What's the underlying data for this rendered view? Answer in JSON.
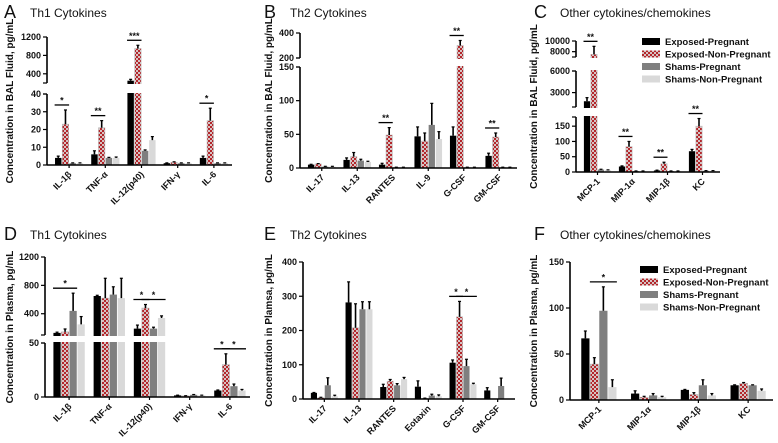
{
  "series_names": [
    "Exposed-Pregnant",
    "Exposed-Non-Pregnant",
    "Shams-Pregnant",
    "Shams-Non-Pregnant"
  ],
  "series_colors": [
    "#000000",
    "#b3262b",
    "#7f7f7f",
    "#d9d9d9"
  ],
  "chart_data": [
    {
      "panel": "A",
      "type": "bar",
      "title": "Th1 Cytokines",
      "ylabel": "Concentration in BAL Fluid, pg/mL",
      "categories": [
        "IL-1β",
        "TNF-α",
        "IL-12(p40)",
        "IFN-γ",
        "IL-6"
      ],
      "series": [
        {
          "name": "Exposed-Pregnant",
          "values": [
            4,
            6,
            250,
            1,
            4
          ],
          "errors": [
            1,
            2,
            30,
            0.2,
            1
          ]
        },
        {
          "name": "Exposed-Non-Pregnant",
          "values": [
            23,
            21,
            950,
            1.5,
            25
          ],
          "errors": [
            8,
            4,
            70,
            0.3,
            7
          ]
        },
        {
          "name": "Shams-Pregnant",
          "values": [
            1,
            4,
            8,
            1,
            1
          ],
          "errors": [
            0.2,
            0.3,
            0.5,
            0.2,
            0.2
          ]
        },
        {
          "name": "Shams-Non-Pregnant",
          "values": [
            1,
            4,
            14,
            1,
            1
          ],
          "errors": [
            0.2,
            0.5,
            2,
            0.2,
            0.2
          ]
        }
      ],
      "y_segments": [
        {
          "range": [
            0,
            40
          ],
          "ticks": [
            "0",
            "10",
            "20",
            "30",
            "40"
          ]
        },
        {
          "range": [
            200,
            1200
          ],
          "ticks": [
            "400",
            "800",
            "1200"
          ]
        }
      ],
      "significance": [
        {
          "category": 0,
          "from": 0,
          "to": 1,
          "label": "*"
        },
        {
          "category": 1,
          "from": 0,
          "to": 1,
          "label": "**"
        },
        {
          "category": 2,
          "from": 0,
          "to": 1,
          "label": "***"
        },
        {
          "category": 4,
          "from": 0,
          "to": 1,
          "label": "*"
        }
      ],
      "legend": false
    },
    {
      "panel": "B",
      "type": "bar",
      "title": "Th2 Cytokines",
      "ylabel": "Concentration in BAL Fluid, pg/mL",
      "categories": [
        "IL-17",
        "IL-13",
        "RANTES",
        "IL-9",
        "G-CSF",
        "GM-CSF"
      ],
      "series": [
        {
          "name": "Exposed-Pregnant",
          "values": [
            5,
            12,
            5,
            47,
            48,
            18
          ],
          "errors": [
            0.5,
            3,
            2,
            14,
            13,
            4
          ]
        },
        {
          "name": "Exposed-Non-Pregnant",
          "values": [
            6,
            17,
            49,
            40,
            300,
            46
          ],
          "errors": [
            0.5,
            6,
            11,
            12,
            40,
            6
          ]
        },
        {
          "name": "Shams-Pregnant",
          "values": [
            2,
            11,
            1,
            64,
            1,
            1
          ],
          "errors": [
            0.5,
            2,
            0.2,
            32,
            0.2,
            0.2
          ]
        },
        {
          "name": "Shams-Non-Pregnant",
          "values": [
            2,
            9,
            1,
            43,
            1,
            1
          ],
          "errors": [
            0.5,
            1,
            0.2,
            11,
            0.2,
            0.2
          ]
        }
      ],
      "y_segments": [
        {
          "range": [
            0,
            150
          ],
          "ticks": [
            "0",
            "50",
            "100",
            "150"
          ]
        },
        {
          "range": [
            200,
            400
          ],
          "ticks": [
            "200",
            "400"
          ]
        }
      ],
      "significance": [
        {
          "category": 2,
          "from": 0,
          "to": 1,
          "label": "**"
        },
        {
          "category": 4,
          "from": 0,
          "to": 1,
          "label": "**"
        },
        {
          "category": 5,
          "from": 0,
          "to": 1,
          "label": "**"
        }
      ],
      "legend": false
    },
    {
      "panel": "C",
      "type": "bar",
      "title": "Other cytokines/chemokines",
      "ylabel": "Concentration in BAL Fluid, pg/mL",
      "categories": [
        "MCP-1",
        "MIP-1α",
        "MIP-1β",
        "KC"
      ],
      "series": [
        {
          "name": "Exposed-Pregnant",
          "values": [
            1800,
            18,
            5,
            68
          ],
          "errors": [
            500,
            2,
            1,
            6
          ]
        },
        {
          "name": "Exposed-Non-Pregnant",
          "values": [
            7500,
            83,
            27,
            150
          ],
          "errors": [
            1500,
            17,
            5,
            25
          ]
        },
        {
          "name": "Shams-Pregnant",
          "values": [
            8,
            3,
            3,
            4
          ],
          "errors": [
            1,
            0.5,
            0.5,
            0.5
          ]
        },
        {
          "name": "Shams-Non-Pregnant",
          "values": [
            6,
            3,
            3,
            4
          ],
          "errors": [
            1,
            0.5,
            0.5,
            0.5
          ]
        }
      ],
      "y_segments": [
        {
          "range": [
            0,
            180
          ],
          "ticks": [
            "0",
            "50",
            "100",
            "150"
          ]
        },
        {
          "range": [
            1000,
            6000
          ],
          "ticks": [
            "3000",
            "6000"
          ]
        },
        {
          "range": [
            7000,
            10000
          ],
          "ticks": [
            "8000",
            "10000"
          ]
        }
      ],
      "significance": [
        {
          "category": 0,
          "from": 0,
          "to": 1,
          "label": "**"
        },
        {
          "category": 1,
          "from": 0,
          "to": 1,
          "label": "**"
        },
        {
          "category": 2,
          "from": 0,
          "to": 1,
          "label": "**"
        },
        {
          "category": 3,
          "from": 0,
          "to": 1,
          "label": "**"
        }
      ],
      "legend": true
    },
    {
      "panel": "D",
      "type": "bar",
      "title": "Th1 Cytokines",
      "ylabel": "Concentration in Plasma, pg/mL",
      "categories": [
        "IL-1β",
        "TNF-α",
        "IL-12(p40)",
        "IFN-γ",
        "IL-6"
      ],
      "series": [
        {
          "name": "Exposed-Pregnant",
          "values": [
            130,
            650,
            190,
            1.5,
            6
          ],
          "errors": [
            10,
            10,
            50,
            0.2,
            0.5
          ]
        },
        {
          "name": "Exposed-Non-Pregnant",
          "values": [
            145,
            620,
            480,
            1,
            30
          ],
          "errors": [
            40,
            280,
            50,
            0.2,
            10
          ]
        },
        {
          "name": "Shams-Pregnant",
          "values": [
            440,
            670,
            190,
            2,
            10
          ],
          "errors": [
            250,
            110,
            20,
            0.3,
            2
          ]
        },
        {
          "name": "Shams-Non-Pregnant",
          "values": [
            250,
            620,
            340,
            1.5,
            6
          ],
          "errors": [
            110,
            280,
            30,
            0.2,
            1
          ]
        }
      ],
      "y_segments": [
        {
          "range": [
            0,
            50
          ],
          "ticks": [
            "0",
            "50"
          ]
        },
        {
          "range": [
            100,
            1200
          ],
          "ticks": [
            "400",
            "800",
            "1200"
          ]
        }
      ],
      "significance": [
        {
          "category": 0,
          "from": 0,
          "to": 2,
          "label": "*"
        },
        {
          "category": 2,
          "from": 0,
          "to": 1,
          "label": "*"
        },
        {
          "category": 2,
          "from": 1,
          "to": 3,
          "label": "*"
        },
        {
          "category": 4,
          "from": 0,
          "to": 1,
          "label": "*"
        },
        {
          "category": 4,
          "from": 1,
          "to": 3,
          "label": "*"
        }
      ],
      "legend": false
    },
    {
      "panel": "E",
      "type": "bar",
      "title": "Th2 Cytokines",
      "ylabel": "Concentration in Plamsa, pg/mL",
      "categories": [
        "IL-17",
        "IL-13",
        "RANTES",
        "Eotaxin",
        "G-CSF",
        "GM-CSF"
      ],
      "series": [
        {
          "name": "Exposed-Pregnant",
          "values": [
            18,
            282,
            35,
            36,
            106,
            25
          ],
          "errors": [
            1,
            60,
            8,
            17,
            8,
            8
          ]
        },
        {
          "name": "Exposed-Non-Pregnant",
          "values": [
            4,
            208,
            52,
            2,
            240,
            null
          ],
          "errors": [
            1,
            70,
            5,
            0.5,
            45,
            null
          ]
        },
        {
          "name": "Shams-Pregnant",
          "values": [
            40,
            262,
            40,
            10,
            96,
            38
          ],
          "errors": [
            22,
            22,
            5,
            4,
            20,
            23
          ]
        },
        {
          "name": "Shams-Non-Pregnant",
          "values": [
            8,
            262,
            58,
            8,
            43,
            null
          ],
          "errors": [
            3,
            22,
            5,
            4,
            3,
            null
          ]
        }
      ],
      "y_segments": [
        {
          "range": [
            0,
            400
          ],
          "ticks": [
            "0",
            "100",
            "200",
            "300",
            "400"
          ]
        }
      ],
      "significance": [
        {
          "category": 4,
          "from": 0,
          "to": 1,
          "label": "*"
        },
        {
          "category": 4,
          "from": 1,
          "to": 3,
          "label": "*"
        }
      ],
      "legend": false
    },
    {
      "panel": "F",
      "type": "bar",
      "title": "Other cytokines/chemokines",
      "ylabel": "Concentration in Plasma, pg/mL",
      "categories": [
        "MCP-1",
        "MIP-1α",
        "MIP-1β",
        "KC"
      ],
      "series": [
        {
          "name": "Exposed-Pregnant",
          "values": [
            67,
            7,
            11,
            16
          ],
          "errors": [
            8,
            3,
            0.5,
            0.5
          ]
        },
        {
          "name": "Exposed-Non-Pregnant",
          "values": [
            39,
            3,
            6,
            18
          ],
          "errors": [
            7,
            1,
            2,
            1
          ]
        },
        {
          "name": "Shams-Pregnant",
          "values": [
            97,
            5,
            16,
            16
          ],
          "errors": [
            26,
            2,
            6,
            0.5
          ]
        },
        {
          "name": "Shams-Non-Pregnant",
          "values": [
            14,
            3,
            5,
            10
          ],
          "errors": [
            8,
            1,
            2,
            2
          ]
        }
      ],
      "y_segments": [
        {
          "range": [
            0,
            150
          ],
          "ticks": [
            "0",
            "50",
            "100",
            "150"
          ]
        }
      ],
      "significance": [
        {
          "category": 0,
          "from": 1,
          "to": 3,
          "label": "*"
        }
      ],
      "legend": true
    }
  ]
}
